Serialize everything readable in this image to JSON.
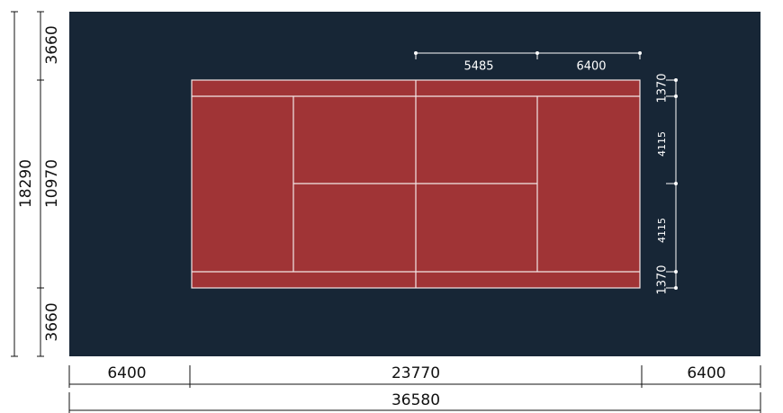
{
  "dimensions": {
    "left_total": "18290",
    "left": [
      "3660",
      "10970",
      "3660"
    ],
    "bottom": [
      "6400",
      "23770",
      "6400"
    ],
    "bottom_total": "36580",
    "top": [
      "5485",
      "6400"
    ],
    "right": [
      "1370",
      "4115",
      "4115",
      "1370"
    ]
  }
}
